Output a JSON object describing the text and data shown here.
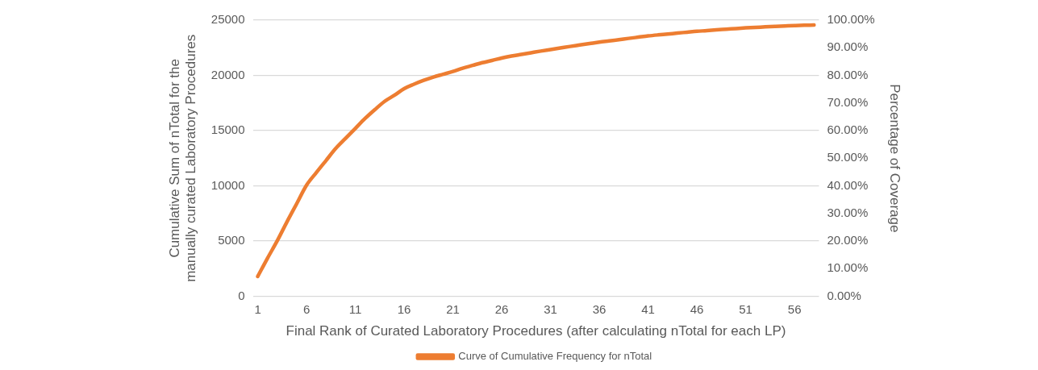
{
  "chart_data": {
    "type": "line",
    "xlabel": "Final Rank of Curated Laboratory Procedures (after calculating nTotal for each LP)",
    "ylabel": "Cumulative Sum of nTotal for the manually curated Laboratory Procedures",
    "y2label": "Percentage of Coverage",
    "x": [
      1,
      2,
      3,
      4,
      5,
      6,
      7,
      8,
      9,
      10,
      11,
      12,
      13,
      14,
      15,
      16,
      17,
      18,
      19,
      20,
      21,
      22,
      23,
      24,
      25,
      26,
      27,
      28,
      29,
      30,
      31,
      32,
      33,
      34,
      35,
      36,
      37,
      38,
      39,
      40,
      41,
      42,
      43,
      44,
      45,
      46,
      47,
      48,
      49,
      50,
      51,
      52,
      53,
      54,
      55,
      56,
      57,
      58
    ],
    "xlim": [
      0.5,
      58.5
    ],
    "xticks": [
      1,
      6,
      11,
      16,
      21,
      26,
      31,
      36,
      41,
      46,
      51,
      56
    ],
    "series": [
      {
        "name": "Curve of Cumulative Frequency for nTotal",
        "color": "#ed7d31",
        "values": [
          1800,
          3450,
          5030,
          6750,
          8400,
          10060,
          11200,
          12300,
          13390,
          14300,
          15200,
          16100,
          16900,
          17650,
          18200,
          18800,
          19200,
          19550,
          19850,
          20100,
          20350,
          20650,
          20900,
          21150,
          21350,
          21570,
          21750,
          21900,
          22050,
          22200,
          22340,
          22480,
          22620,
          22750,
          22880,
          23010,
          23120,
          23230,
          23350,
          23460,
          23570,
          23660,
          23740,
          23830,
          23910,
          23990,
          24050,
          24120,
          24180,
          24240,
          24300,
          24350,
          24390,
          24430,
          24470,
          24510,
          24540,
          24560
        ]
      }
    ],
    "ylim": [
      0,
      25000
    ],
    "yticks": [
      0,
      5000,
      10000,
      15000,
      20000,
      25000
    ],
    "y2lim": [
      0,
      100
    ],
    "y2ticks": [
      {
        "value": 0,
        "label": "0.00%"
      },
      {
        "value": 10,
        "label": "10.00%"
      },
      {
        "value": 20,
        "label": "20.00%"
      },
      {
        "value": 30,
        "label": "30.00%"
      },
      {
        "value": 40,
        "label": "40.00%"
      },
      {
        "value": 50,
        "label": "50.00%"
      },
      {
        "value": 60,
        "label": "60.00%"
      },
      {
        "value": 70,
        "label": "70.00%"
      },
      {
        "value": 80,
        "label": "80.00%"
      },
      {
        "value": 90,
        "label": "90.00%"
      },
      {
        "value": 100,
        "label": "100.00%"
      }
    ],
    "grid": "y",
    "legend": "bottom",
    "marker": "none",
    "line_style": "solid"
  }
}
